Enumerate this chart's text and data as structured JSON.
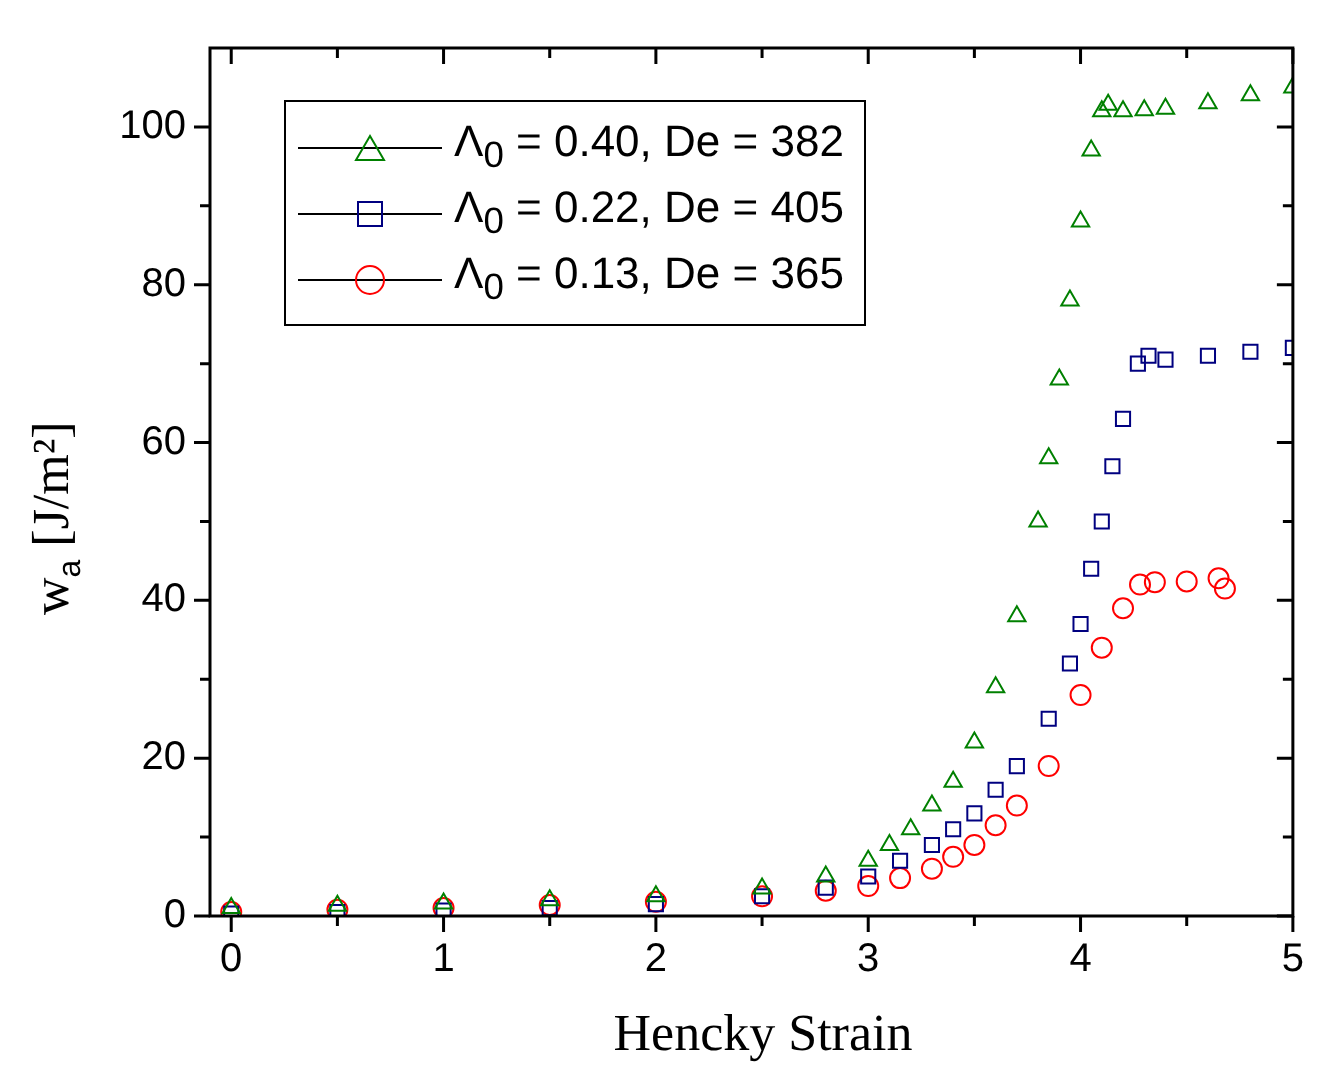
{
  "chart_data": {
    "type": "scatter",
    "xlabel": "Hencky Strain",
    "ylabel": "w$_{a}$ [J/m²]",
    "xlim": [
      -0.1,
      5
    ],
    "xticks": [
      0,
      {
        "value": 0.5,
        "label": null
      },
      1,
      {
        "value": 1.5,
        "label": null
      },
      2,
      {
        "value": 2.5,
        "label": null
      },
      3,
      {
        "value": 3.5,
        "label": null
      },
      4,
      {
        "value": 4.5,
        "label": null
      },
      5
    ],
    "ylim": [
      0,
      110
    ],
    "yticks": [
      0,
      {
        "value": 10,
        "label": null
      },
      20,
      {
        "value": 30,
        "label": null
      },
      40,
      {
        "value": 50,
        "label": null
      },
      60,
      {
        "value": 70,
        "label": null
      },
      80,
      {
        "value": 90,
        "label": null
      },
      100
    ],
    "legend": "top left",
    "grid": false,
    "series": [
      {
        "name": "Λ$_{0}$ = 0.40, De = 382",
        "color": "#008000",
        "marker": "triangle",
        "x": [
          0,
          0.5,
          1,
          1.5,
          2,
          2.5,
          2.8,
          3,
          3.1,
          3.2,
          3.3,
          3.4,
          3.5,
          3.6,
          3.7,
          3.8,
          3.85,
          3.9,
          3.95,
          4,
          4.05,
          4.1,
          4.13,
          4.2,
          4.3,
          4.4,
          4.6,
          4.8,
          5
        ],
        "values": [
          1,
          1.3,
          1.6,
          2,
          2.5,
          3.5,
          5,
          7,
          9,
          11,
          14,
          17,
          22,
          29,
          38,
          50,
          58,
          68,
          78,
          88,
          97,
          102,
          102.8,
          102,
          102.1,
          102.3,
          103,
          104,
          105
        ]
      },
      {
        "name": "Λ$_{0}$ = 0.22, De = 405",
        "color": "#000080",
        "marker": "square",
        "x": [
          0,
          0.5,
          1,
          1.5,
          2,
          2.5,
          2.8,
          3,
          3.15,
          3.3,
          3.4,
          3.5,
          3.6,
          3.7,
          3.85,
          3.95,
          4,
          4.05,
          4.1,
          4.15,
          4.2,
          4.27,
          4.32,
          4.4,
          4.6,
          4.8,
          5
        ],
        "values": [
          0.3,
          0.5,
          0.7,
          1,
          1.5,
          2.5,
          3.6,
          5,
          7,
          9,
          11,
          13,
          16,
          19,
          25,
          32,
          37,
          44,
          50,
          57,
          63,
          70,
          71,
          70.5,
          71,
          71.5,
          72
        ]
      },
      {
        "name": "Λ$_{0}$ = 0.13, De = 365",
        "color": "#ff0000",
        "marker": "circle",
        "x": [
          0,
          0.5,
          1,
          1.5,
          2,
          2.5,
          2.8,
          3,
          3.15,
          3.3,
          3.4,
          3.5,
          3.6,
          3.7,
          3.85,
          4,
          4.1,
          4.2,
          4.28,
          4.35,
          4.5,
          4.65,
          4.68
        ],
        "values": [
          0.5,
          0.8,
          1,
          1.4,
          1.8,
          2.5,
          3.2,
          3.8,
          4.8,
          6,
          7.5,
          9,
          11.5,
          14,
          19,
          28,
          34,
          39,
          42,
          42.3,
          42.4,
          42.8,
          41.5
        ]
      }
    ]
  }
}
